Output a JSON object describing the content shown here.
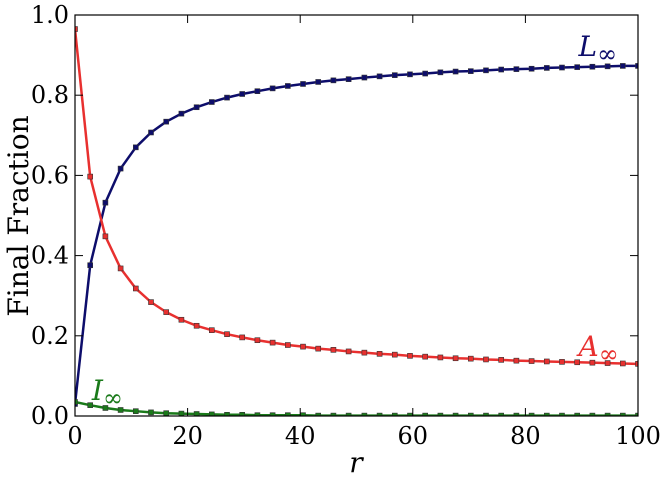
{
  "chart_data": {
    "type": "line",
    "xlabel": "r",
    "ylabel": "Final Fraction",
    "xlim": [
      0,
      100
    ],
    "ylim": [
      0.0,
      1.0
    ],
    "xticks": [
      "0",
      "20",
      "40",
      "60",
      "80",
      "100"
    ],
    "yticks": [
      "0.0",
      "0.2",
      "0.4",
      "0.6",
      "0.8",
      "1.0"
    ],
    "grid": false,
    "series": [
      {
        "name": "L∞",
        "label_main": "L",
        "label_sub": "∞",
        "color": "#0d0d6b",
        "x": [
          0,
          2.7,
          5.4,
          8.1,
          10.8,
          13.5,
          16.2,
          18.9,
          21.6,
          24.3,
          27.0,
          29.7,
          32.4,
          35.1,
          37.8,
          40.5,
          43.2,
          45.9,
          48.6,
          51.4,
          54.1,
          56.8,
          59.5,
          62.2,
          64.9,
          67.6,
          70.3,
          73.0,
          75.7,
          78.4,
          81.1,
          83.8,
          86.5,
          89.2,
          91.9,
          94.6,
          97.3,
          100
        ],
        "y": [
          0.03,
          0.376,
          0.532,
          0.617,
          0.67,
          0.707,
          0.734,
          0.754,
          0.77,
          0.783,
          0.794,
          0.803,
          0.81,
          0.817,
          0.823,
          0.828,
          0.833,
          0.837,
          0.84,
          0.844,
          0.847,
          0.85,
          0.852,
          0.854,
          0.857,
          0.859,
          0.86,
          0.862,
          0.864,
          0.865,
          0.866,
          0.868,
          0.869,
          0.87,
          0.871,
          0.872,
          0.873,
          0.873
        ]
      },
      {
        "name": "A∞",
        "label_main": "A",
        "label_sub": "∞",
        "color": "#e8302f",
        "x": [
          0,
          2.7,
          5.4,
          8.1,
          10.8,
          13.5,
          16.2,
          18.9,
          21.6,
          24.3,
          27.0,
          29.7,
          32.4,
          35.1,
          37.8,
          40.5,
          43.2,
          45.9,
          48.6,
          51.4,
          54.1,
          56.8,
          59.5,
          62.2,
          64.9,
          67.6,
          70.3,
          73.0,
          75.7,
          78.4,
          81.1,
          83.8,
          86.5,
          89.2,
          91.9,
          94.6,
          97.3,
          100
        ],
        "y": [
          0.965,
          0.597,
          0.448,
          0.368,
          0.318,
          0.284,
          0.259,
          0.24,
          0.225,
          0.214,
          0.204,
          0.196,
          0.189,
          0.183,
          0.177,
          0.173,
          0.168,
          0.165,
          0.161,
          0.158,
          0.155,
          0.153,
          0.15,
          0.148,
          0.146,
          0.144,
          0.143,
          0.141,
          0.14,
          0.138,
          0.137,
          0.136,
          0.135,
          0.134,
          0.133,
          0.132,
          0.131,
          0.13
        ]
      },
      {
        "name": "I∞",
        "label_main": "I",
        "label_sub": "∞",
        "color": "#1a7a1a",
        "x": [
          0,
          2.7,
          5.4,
          8.1,
          10.8,
          13.5,
          16.2,
          18.9,
          21.6,
          24.3,
          27.0,
          29.7,
          32.4,
          35.1,
          37.8,
          40.5,
          43.2,
          45.9,
          48.6,
          51.4,
          54.1,
          56.8,
          59.5,
          62.2,
          64.9,
          67.6,
          70.3,
          73.0,
          75.7,
          78.4,
          81.1,
          83.8,
          86.5,
          89.2,
          91.9,
          94.6,
          97.3,
          100
        ],
        "y": [
          0.035,
          0.027,
          0.02,
          0.015,
          0.012,
          0.009,
          0.007,
          0.006,
          0.005,
          0.004,
          0.003,
          0.003,
          0.002,
          0.002,
          0.002,
          0.002,
          0.001,
          0.001,
          0.001,
          0.001,
          0.001,
          0.001,
          0.001,
          0.001,
          0.001,
          0.001,
          0.001,
          0.001,
          0.001,
          0.001,
          0.001,
          0.001,
          0.001,
          0.001,
          0.001,
          0.001,
          0.001,
          0.001
        ]
      }
    ]
  }
}
